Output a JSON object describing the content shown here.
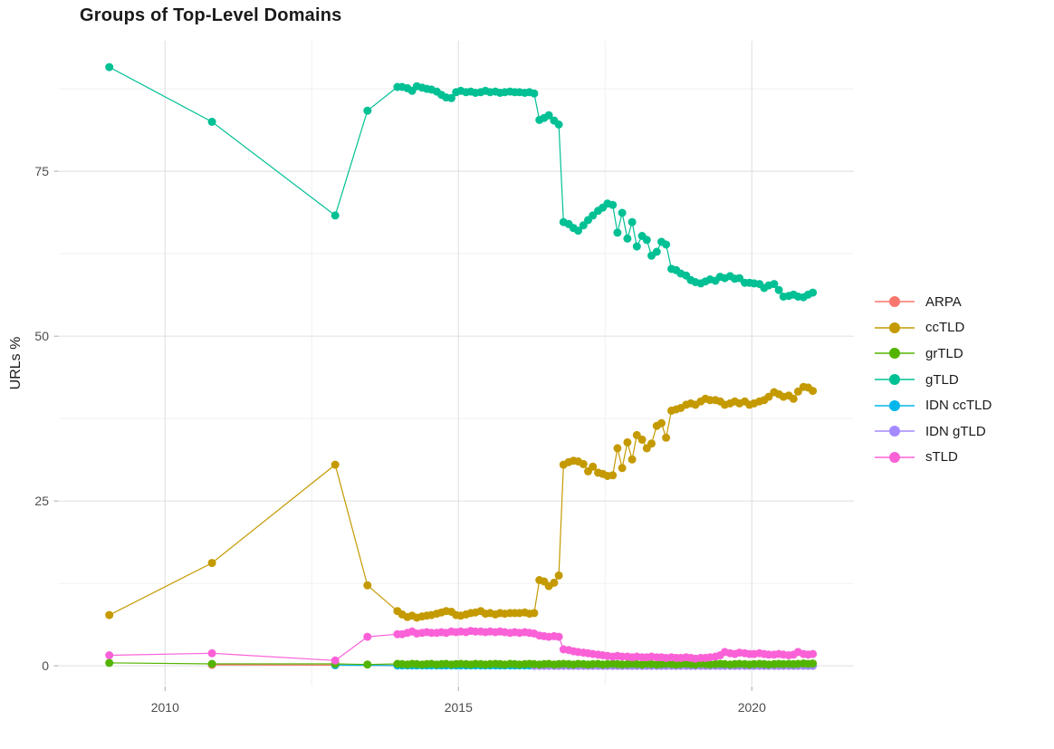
{
  "chart_data": {
    "type": "line",
    "title": "Groups of Top-Level Domains",
    "xlabel": "",
    "ylabel": "URLs %",
    "grid": true,
    "legend_position": "right-center",
    "x_axis": {
      "ticks": [
        2010,
        2015,
        2020
      ],
      "minor": [
        2012.5,
        2017.5
      ],
      "range": [
        2008.19,
        2021.74
      ]
    },
    "y_axis": {
      "ticks": [
        0,
        25,
        50,
        75
      ],
      "minor": [
        12.5,
        37.5,
        62.5,
        87.5
      ],
      "range": [
        -3.0,
        94.8
      ]
    },
    "x_dense": [
      2013.96,
      2014.04,
      2014.13,
      2014.21,
      2014.29,
      2014.38,
      2014.46,
      2014.54,
      2014.63,
      2014.71,
      2014.79,
      2014.88,
      2014.96,
      2015.04,
      2015.13,
      2015.21,
      2015.29,
      2015.38,
      2015.46,
      2015.54,
      2015.63,
      2015.71,
      2015.79,
      2015.88,
      2015.96,
      2016.04,
      2016.13,
      2016.21,
      2016.29,
      2016.38,
      2016.46,
      2016.54,
      2016.63,
      2016.71,
      2016.79,
      2016.88,
      2016.96,
      2017.04,
      2017.13,
      2017.21,
      2017.29,
      2017.38,
      2017.46,
      2017.54,
      2017.63,
      2017.71,
      2017.79,
      2017.88,
      2017.96,
      2018.04,
      2018.13,
      2018.21,
      2018.29,
      2018.38,
      2018.46,
      2018.54,
      2018.63,
      2018.71,
      2018.79,
      2018.88,
      2018.96,
      2019.04,
      2019.13,
      2019.21,
      2019.29,
      2019.38,
      2019.46,
      2019.54,
      2019.63,
      2019.71,
      2019.79,
      2019.88,
      2019.96,
      2020.04,
      2020.13,
      2020.21,
      2020.29,
      2020.38,
      2020.46,
      2020.54,
      2020.63,
      2020.71,
      2020.79,
      2020.88,
      2020.96,
      2021.04
    ],
    "series": [
      {
        "name": "ARPA",
        "color": "#F8766D",
        "early": [
          [
            2010.8,
            0.15
          ],
          [
            2012.9,
            0.1
          ]
        ],
        "dense": {
          "const": 0.08,
          "from": 0
        }
      },
      {
        "name": "ccTLD",
        "color": "#C49A00",
        "early": [
          [
            2009.05,
            7.7
          ],
          [
            2010.8,
            15.6
          ],
          [
            2012.9,
            30.5
          ],
          [
            2013.45,
            12.2
          ]
        ],
        "dense": {
          "y": [
            8.3,
            7.8,
            7.4,
            7.6,
            7.3,
            7.5,
            7.6,
            7.7,
            7.9,
            8.1,
            8.3,
            8.2,
            7.7,
            7.6,
            7.8,
            8.0,
            8.1,
            8.3,
            7.9,
            8.0,
            7.8,
            8.0,
            7.9,
            8.0,
            8.0,
            8.0,
            8.1,
            7.9,
            8.0,
            13.0,
            12.8,
            12.1,
            12.6,
            13.7,
            30.5,
            30.9,
            31.1,
            31.0,
            30.6,
            29.5,
            30.2,
            29.3,
            29.1,
            28.8,
            28.9,
            33.0,
            30.0,
            33.9,
            31.3,
            35.0,
            34.3,
            33.0,
            33.7,
            36.4,
            36.8,
            34.6,
            38.7,
            38.9,
            39.1,
            39.6,
            39.8,
            39.6,
            40.1,
            40.5,
            40.3,
            40.3,
            40.1,
            39.6,
            39.8,
            40.1,
            39.8,
            40.1,
            39.6,
            39.8,
            40.1,
            40.3,
            40.8,
            41.5,
            41.2,
            40.8,
            41.0,
            40.5,
            41.6,
            42.3,
            42.2,
            41.7
          ]
        }
      },
      {
        "name": "grTLD",
        "color": "#53B400",
        "early": [
          [
            2009.05,
            0.45
          ],
          [
            2010.8,
            0.3
          ],
          [
            2012.9,
            0.3
          ],
          [
            2013.45,
            0.2
          ]
        ],
        "dense": {
          "y": [
            0.3,
            0.25,
            0.2,
            0.3,
            0.25,
            0.2,
            0.25,
            0.3,
            0.2,
            0.25,
            0.3,
            0.2,
            0.25,
            0.3,
            0.25,
            0.2,
            0.3,
            0.25,
            0.2,
            0.25,
            0.3,
            0.25,
            0.2,
            0.3,
            0.25,
            0.2,
            0.25,
            0.3,
            0.25,
            0.2,
            0.25,
            0.3,
            0.2,
            0.25,
            0.3,
            0.25,
            0.2,
            0.3,
            0.25,
            0.2,
            0.25,
            0.3,
            0.2,
            0.25,
            0.3,
            0.25,
            0.2,
            0.25,
            0.3,
            0.25,
            0.2,
            0.3,
            0.25,
            0.2,
            0.25,
            0.3,
            0.25,
            0.2,
            0.25,
            0.3,
            0.25,
            0.2,
            0.3,
            0.25,
            0.2,
            0.25,
            0.3,
            0.25,
            0.2,
            0.25,
            0.3,
            0.25,
            0.2,
            0.25,
            0.3,
            0.25,
            0.2,
            0.25,
            0.3,
            0.25,
            0.3,
            0.25,
            0.3,
            0.35,
            0.3,
            0.35
          ]
        }
      },
      {
        "name": "gTLD",
        "color": "#00C094",
        "early": [
          [
            2009.05,
            90.8
          ],
          [
            2010.8,
            82.5
          ],
          [
            2012.9,
            68.3
          ],
          [
            2013.45,
            84.2
          ]
        ],
        "dense": {
          "y": [
            87.8,
            87.8,
            87.6,
            87.2,
            87.9,
            87.7,
            87.5,
            87.4,
            87.1,
            86.6,
            86.2,
            86.1,
            87.0,
            87.2,
            87.0,
            87.1,
            86.9,
            87.0,
            87.2,
            87.0,
            87.1,
            86.9,
            87.0,
            87.1,
            87.0,
            87.0,
            86.9,
            87.0,
            86.8,
            82.8,
            83.1,
            83.5,
            82.7,
            82.1,
            67.3,
            67.0,
            66.4,
            66.0,
            66.8,
            67.6,
            68.3,
            69.0,
            69.5,
            70.1,
            69.9,
            65.7,
            68.7,
            64.8,
            67.3,
            63.6,
            65.2,
            64.6,
            62.2,
            62.8,
            64.3,
            63.9,
            60.2,
            60.0,
            59.5,
            59.2,
            58.5,
            58.2,
            58.0,
            58.3,
            58.6,
            58.4,
            59.0,
            58.8,
            59.1,
            58.7,
            58.8,
            58.1,
            58.1,
            58.0,
            57.9,
            57.3,
            57.7,
            57.9,
            57.0,
            56.0,
            56.1,
            56.3,
            56.0,
            55.9,
            56.3,
            56.6
          ]
        }
      },
      {
        "name": "IDN ccTLD",
        "color": "#00B6EB",
        "early": [
          [
            2012.9,
            0.1
          ]
        ],
        "dense": {
          "const": 0.05,
          "from": 0
        }
      },
      {
        "name": "IDN gTLD",
        "color": "#A58AFF",
        "dense": {
          "const": 0.0,
          "from": 28
        }
      },
      {
        "name": "sTLD",
        "color": "#FB61D7",
        "early": [
          [
            2009.05,
            1.6
          ],
          [
            2010.8,
            1.9
          ],
          [
            2012.9,
            0.8
          ],
          [
            2013.45,
            4.4
          ]
        ],
        "dense": {
          "y": [
            4.8,
            4.8,
            5.0,
            5.2,
            4.9,
            5.0,
            5.1,
            5.0,
            5.0,
            5.1,
            5.0,
            5.2,
            5.1,
            5.2,
            5.1,
            5.3,
            5.2,
            5.2,
            5.1,
            5.2,
            5.1,
            5.2,
            5.1,
            5.0,
            5.1,
            5.0,
            5.1,
            5.0,
            4.9,
            4.6,
            4.5,
            4.4,
            4.5,
            4.4,
            2.5,
            2.4,
            2.2,
            2.1,
            2.0,
            1.9,
            1.8,
            1.7,
            1.6,
            1.5,
            1.4,
            1.5,
            1.4,
            1.4,
            1.3,
            1.4,
            1.3,
            1.3,
            1.4,
            1.3,
            1.3,
            1.2,
            1.3,
            1.2,
            1.2,
            1.3,
            1.2,
            1.1,
            1.2,
            1.2,
            1.3,
            1.4,
            1.6,
            2.1,
            1.9,
            1.8,
            2.0,
            1.9,
            1.8,
            1.8,
            1.9,
            1.8,
            1.7,
            1.7,
            1.8,
            1.7,
            1.6,
            1.7,
            2.1,
            1.8,
            1.7,
            1.8
          ]
        }
      }
    ],
    "draw_order": [
      "ARPA",
      "ccTLD",
      "IDN ccTLD",
      "IDN gTLD",
      "gTLD",
      "grTLD",
      "sTLD"
    ],
    "colors": {
      "grid_major": "#E3E3E3",
      "grid_minor": "#EFEFEF",
      "tick_mark": "#B8B8B8",
      "tick_label": "#4d4d4d"
    }
  }
}
